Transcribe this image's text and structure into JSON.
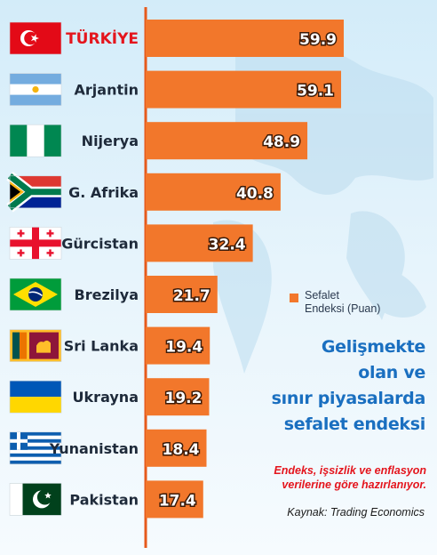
{
  "chart_data": {
    "type": "bar",
    "orientation": "horizontal",
    "categories": [
      "TÜRKİYE",
      "Arjantin",
      "Nijerya",
      "G. Afrika",
      "Gürcistan",
      "Brezilya",
      "Sri Lanka",
      "Ukrayna",
      "Yunanistan",
      "Pakistan"
    ],
    "values": [
      59.9,
      59.1,
      48.9,
      40.8,
      32.4,
      21.7,
      19.4,
      19.2,
      18.4,
      17.4
    ],
    "value_labels": [
      "59.9",
      "59.1",
      "48.9",
      "40.8",
      "32.4",
      "21.7",
      "19.4",
      "19.2",
      "18.4",
      "17.4"
    ],
    "flags": [
      "turkey-flag",
      "argentina-flag",
      "nigeria-flag",
      "south-africa-flag",
      "georgia-flag",
      "brazil-flag",
      "sri-lanka-flag",
      "ukraine-flag",
      "greece-flag",
      "pakistan-flag"
    ],
    "series": [
      {
        "name": "Sefalet Endeksi (Puan)",
        "values": [
          59.9,
          59.1,
          48.9,
          40.8,
          32.4,
          21.7,
          19.4,
          19.2,
          18.4,
          17.4
        ]
      }
    ],
    "highlight_category": "TÜRKİYE",
    "legend": {
      "placement": "right",
      "lines": [
        "Sefalet",
        "Endeksi (Puan)"
      ]
    },
    "xlim": [
      0,
      60
    ],
    "grid": false,
    "title_lines": [
      "Gelişmekte",
      "olan ve",
      "sınır piyasalarda",
      "sefalet endeksi"
    ],
    "note_lines": [
      "Endeks, işsizlik ve enflasyon",
      "verilerine göre hazırlanıyor."
    ],
    "source": "Kaynak: Trading Economics"
  },
  "colors": {
    "bar": "#f2772b",
    "axis": "#e65a1c",
    "highlight_label": "#e4151d",
    "label": "#1e2a3a",
    "title": "#1a6fc0",
    "note": "#e4151d",
    "background_top": "#d8eef9",
    "background_bottom": "#f4fafd"
  }
}
